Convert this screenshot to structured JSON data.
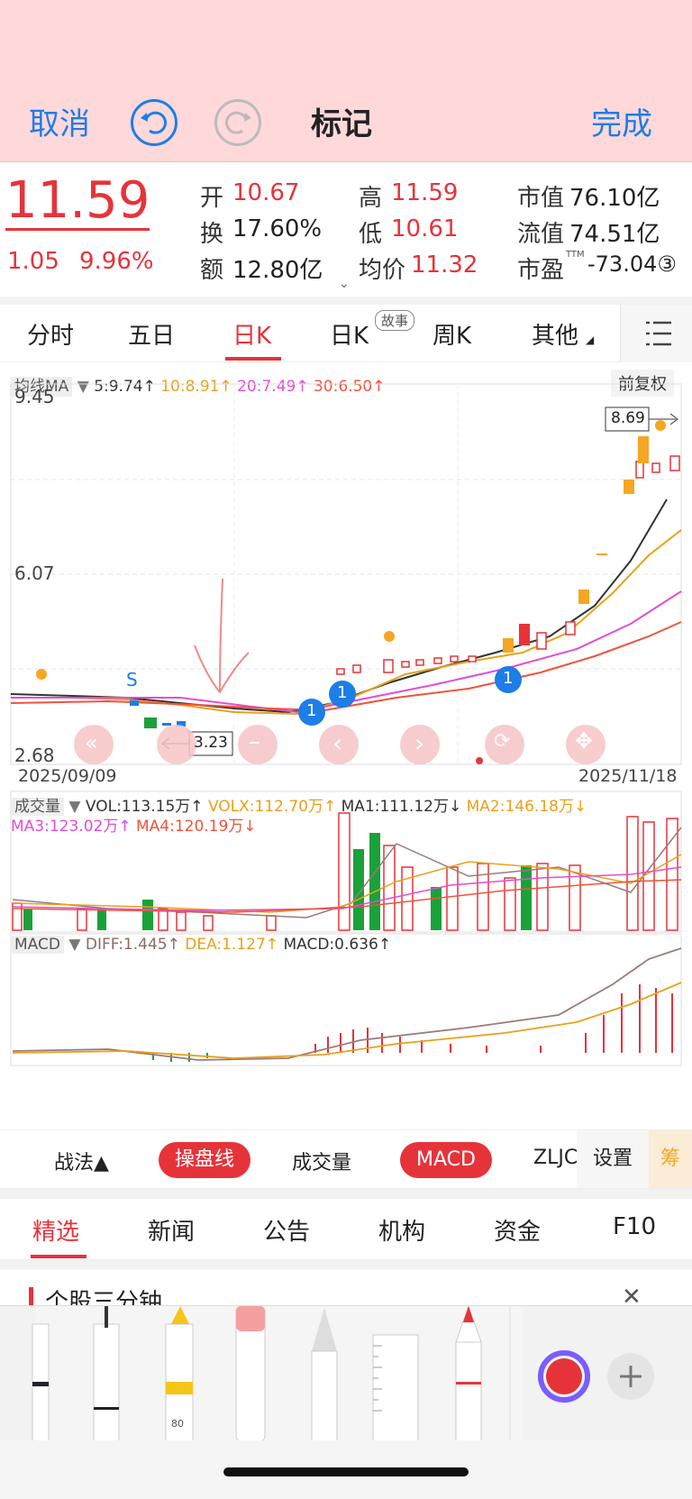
{
  "topbar": {
    "cancel": "取消",
    "title": "标记",
    "done": "完成"
  },
  "quote": {
    "price": "11.59",
    "change": "1.05",
    "change_pct": "9.96%",
    "open_label": "开",
    "open": "10.67",
    "high_label": "高",
    "high": "11.59",
    "turnover_label": "换",
    "turnover": "17.60%",
    "low_label": "低",
    "low": "10.61",
    "amount_label": "额",
    "amount": "12.80亿",
    "avg_label": "均价",
    "avg": "11.32",
    "mktcap_label": "市值",
    "mktcap": "76.10亿",
    "float_label": "流值",
    "float": "74.51亿",
    "pe_label": "市盈",
    "pe_sup": "TTM",
    "pe": "-73.04③"
  },
  "tabs": [
    "分时",
    "五日",
    "日K",
    "日K",
    "周K",
    "其他"
  ],
  "tab_badge": "故事",
  "ma": {
    "label": "均线MA",
    "ma5": "5:9.74↑",
    "ma10": "10:8.91↑",
    "ma20": "20:7.49↑",
    "ma30": "30:6.50↑",
    "adjust": "前复权"
  },
  "chart_labels": {
    "y_top": "9.45",
    "y_mid": "6.07",
    "y_bot": "2.68",
    "x_start": "2025/09/09",
    "x_end": "2025/11/18",
    "hi_tag": "8.69",
    "lo_tag": "3.23",
    "marker_s": "S",
    "marker_1": "1"
  },
  "vol": {
    "label": "成交量",
    "vol": "VOL:113.15万↑",
    "volx": "VOLX:112.70万↑",
    "ma1": "MA1:111.12万↓",
    "ma2": "MA2:146.18万↓",
    "ma3": "MA3:123.02万↑",
    "ma4": "MA4:120.19万↓"
  },
  "macd": {
    "label": "MACD",
    "diff": "DIFF:1.445↑",
    "dea": "DEA:1.127↑",
    "macd": "MACD:0.636↑"
  },
  "toolrow": {
    "zhanfa": "战法▲",
    "caopan": "操盘线",
    "vol": "成交量",
    "macd": "MACD",
    "zlj": "ZLJC",
    "settings": "设置",
    "chou": "筹"
  },
  "news_tabs": [
    "精选",
    "新闻",
    "公告",
    "机构",
    "资金",
    "F10"
  ],
  "card_title": "个股三分钟",
  "pens": {
    "pen_80": "80"
  },
  "colors": {
    "red": "#e6333a",
    "green": "#1aa13a",
    "blue": "#1e7de6",
    "orange": "#f5a623"
  },
  "chart_data": {
    "type": "candlestick",
    "x_range": [
      "2025/09/09",
      "2025/11/18"
    ],
    "ylim": [
      2.68,
      9.45
    ],
    "y_ticks": [
      9.45,
      6.07,
      2.68
    ],
    "annotations": [
      "8.69",
      "3.23"
    ],
    "series": [
      {
        "name": "5",
        "value": 9.74
      },
      {
        "name": "10",
        "value": 8.91
      },
      {
        "name": "20",
        "value": 7.49
      },
      {
        "name": "30",
        "value": 6.5
      }
    ]
  }
}
